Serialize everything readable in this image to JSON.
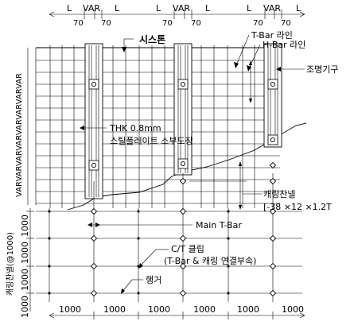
{
  "top_dims": {
    "l": "L",
    "var": "VAR",
    "seventy": "70"
  },
  "labels": {
    "system": "시스톤",
    "tbar_line": "T-Bar 라인",
    "hbar_line": "H-Bar 라인",
    "lighting": "조명기구",
    "thk_line1": "THK 0.8mm",
    "thk_line2": "스틸플레이트 소부도장",
    "carrying_line1": "캐링찬넬",
    "carrying_line2": "[-38 ×12 ×1.2T",
    "main_tbar": "Main T-Bar",
    "ct_clip_line1": "C/T 클립",
    "ct_clip_line2": "(T-Bar &  캐링 연결부속)",
    "hanger": "행거"
  },
  "left_labels": {
    "var_stack": "VARVARVARVARVARVARVARVAR",
    "carrying_spacing": "캐링찬넬(@1000)",
    "v1000": "1000"
  },
  "bottom_dims": {
    "v1000": "1000"
  }
}
